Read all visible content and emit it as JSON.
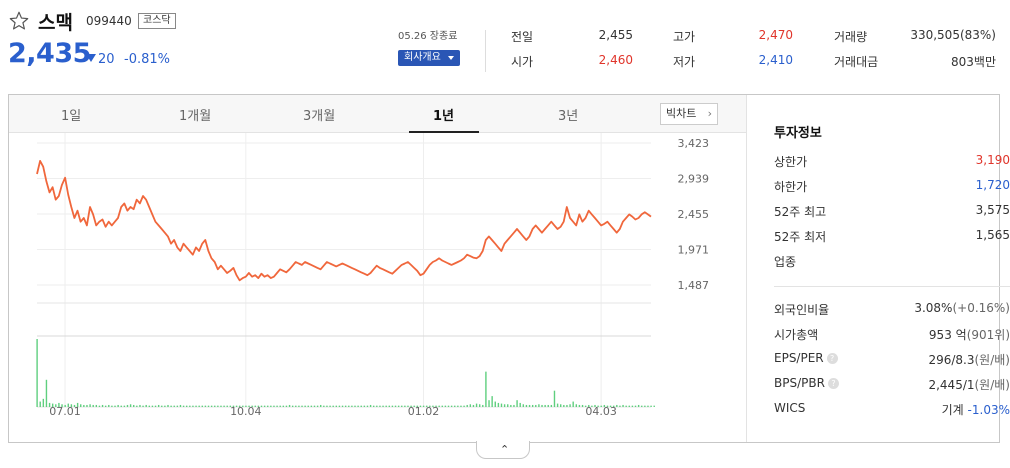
{
  "stock": {
    "name": "스맥",
    "code": "099440",
    "market": "코스닥",
    "price": "2,435",
    "change": "20",
    "change_pct": "-0.81%"
  },
  "header": {
    "date_label": "05.26 장종료",
    "company_button": "회사개요",
    "stats": [
      {
        "label": "전일",
        "value": "2,455",
        "tone": "neutral"
      },
      {
        "label": "고가",
        "value": "2,470",
        "tone": "up"
      },
      {
        "label": "거래량",
        "value": "330,505(83%)",
        "tone": "neutral"
      },
      {
        "label": "시가",
        "value": "2,460",
        "tone": "up"
      },
      {
        "label": "저가",
        "value": "2,410",
        "tone": "down"
      },
      {
        "label": "거래대금",
        "value": "803백만",
        "tone": "neutral"
      }
    ]
  },
  "tabs": [
    "1일",
    "1개월",
    "3개월",
    "1년",
    "3년"
  ],
  "active_tab": "1년",
  "big_chart_button": "빅차트",
  "investment": {
    "title": "투자정보",
    "rows": [
      {
        "label": "상한가",
        "value": "3,190",
        "tone": "up"
      },
      {
        "label": "하한가",
        "value": "1,720",
        "tone": "down"
      },
      {
        "label": "52주 최고",
        "value": "3,575",
        "tone": "neutral"
      },
      {
        "label": "52주 최저",
        "value": "1,565",
        "tone": "neutral"
      },
      {
        "label": "업종",
        "value": "",
        "tone": "neutral"
      }
    ],
    "rows2": [
      {
        "label": "외국인비율",
        "value": "3.08%",
        "sub": "(+0.16%)"
      },
      {
        "label": "시가총액",
        "value": "953 억",
        "sub": "(901위)"
      },
      {
        "label": "EPS/PER",
        "value": "296/8.3",
        "sub": "(원/배)",
        "help": true
      },
      {
        "label": "BPS/PBR",
        "value": "2,445/1",
        "sub": "(원/배)",
        "help": true
      },
      {
        "label": "WICS",
        "value": "기계",
        "sub": "-1.03%",
        "sub_tone": "down"
      }
    ]
  },
  "colors": {
    "up": "#e0352b",
    "down": "#2a5fcd",
    "line": "#f0673c",
    "volume": "#5fcf7e"
  },
  "chart_data": {
    "type": "line",
    "ylim": [
      1350,
      3560
    ],
    "y_ticks": [
      "3,423",
      "2,939",
      "2,455",
      "1,971",
      "1,487"
    ],
    "y_tick_values": [
      3423,
      2939,
      2455,
      1971,
      1487
    ],
    "x_ticks": [
      "07.01",
      "10.04",
      "01.02",
      "04.03"
    ],
    "x_tick_index": [
      9,
      67,
      124,
      181
    ],
    "series": [
      {
        "values": [
          3000,
          3180,
          3100,
          2900,
          2750,
          2820,
          2650,
          2700,
          2850,
          2950,
          2720,
          2550,
          2400,
          2500,
          2350,
          2400,
          2300,
          2550,
          2450,
          2300,
          2350,
          2380,
          2280,
          2350,
          2300,
          2350,
          2400,
          2550,
          2600,
          2500,
          2550,
          2520,
          2650,
          2600,
          2700,
          2650,
          2550,
          2450,
          2350,
          2300,
          2250,
          2200,
          2150,
          2050,
          2100,
          2000,
          1950,
          2050,
          2000,
          1950,
          1900,
          2000,
          1950,
          2050,
          2100,
          1950,
          1850,
          1800,
          1700,
          1750,
          1700,
          1650,
          1680,
          1720,
          1620,
          1550,
          1580,
          1600,
          1650,
          1600,
          1620,
          1580,
          1640,
          1600,
          1620,
          1580,
          1600,
          1650,
          1700,
          1680,
          1660,
          1700,
          1750,
          1800,
          1780,
          1760,
          1800,
          1780,
          1760,
          1740,
          1720,
          1700,
          1750,
          1800,
          1780,
          1760,
          1740,
          1760,
          1780,
          1760,
          1740,
          1720,
          1700,
          1680,
          1660,
          1640,
          1620,
          1650,
          1700,
          1750,
          1720,
          1700,
          1680,
          1660,
          1640,
          1680,
          1720,
          1760,
          1780,
          1800,
          1760,
          1720,
          1680,
          1620,
          1640,
          1700,
          1760,
          1800,
          1820,
          1850,
          1820,
          1800,
          1780,
          1760,
          1780,
          1800,
          1820,
          1850,
          1900,
          1880,
          1860,
          1850,
          1880,
          1950,
          2100,
          2150,
          2100,
          2050,
          2000,
          1950,
          2050,
          2100,
          2150,
          2200,
          2250,
          2200,
          2150,
          2100,
          2150,
          2250,
          2300,
          2250,
          2200,
          2250,
          2300,
          2350,
          2300,
          2250,
          2280,
          2350,
          2550,
          2400,
          2350,
          2300,
          2450,
          2350,
          2400,
          2500,
          2450,
          2400,
          2350,
          2300,
          2320,
          2350,
          2300,
          2250,
          2200,
          2250,
          2350,
          2400,
          2450,
          2420,
          2380,
          2400,
          2450,
          2480,
          2450,
          2420
        ]
      },
      {
        "name": "volume",
        "values": [
          100,
          8,
          12,
          40,
          6,
          5,
          4,
          6,
          4,
          3,
          5,
          4,
          3,
          6,
          4,
          3,
          3,
          4,
          3,
          3,
          2,
          3,
          2,
          3,
          2,
          2,
          3,
          2,
          2,
          3,
          4,
          3,
          2,
          3,
          2,
          3,
          2,
          2,
          2,
          3,
          2,
          2,
          3,
          2,
          2,
          2,
          3,
          2,
          2,
          2,
          2,
          2,
          2,
          2,
          2,
          2,
          2,
          2,
          2,
          2,
          2,
          2,
          2,
          2,
          2,
          2,
          2,
          2,
          2,
          2,
          2,
          2,
          2,
          2,
          2,
          2,
          2,
          2,
          2,
          2,
          2,
          3,
          2,
          2,
          2,
          2,
          2,
          2,
          2,
          2,
          2,
          3,
          2,
          2,
          2,
          2,
          2,
          2,
          2,
          2,
          2,
          2,
          2,
          2,
          2,
          2,
          2,
          3,
          2,
          2,
          2,
          2,
          2,
          2,
          2,
          2,
          2,
          2,
          2,
          2,
          2,
          2,
          2,
          2,
          2,
          2,
          2,
          2,
          2,
          2,
          2,
          2,
          2,
          2,
          2,
          2,
          2,
          2,
          3,
          4,
          3,
          5,
          4,
          3,
          52,
          10,
          16,
          8,
          6,
          5,
          4,
          4,
          3,
          3,
          10,
          6,
          4,
          3,
          3,
          3,
          3,
          4,
          3,
          3,
          3,
          3,
          24,
          5,
          4,
          3,
          3,
          4,
          8,
          4,
          3,
          3,
          2,
          3,
          2,
          3,
          2,
          2,
          3,
          2,
          2,
          2,
          3,
          2,
          3,
          2,
          2,
          2,
          2,
          3,
          2,
          2,
          2,
          2,
          2
        ]
      }
    ]
  }
}
